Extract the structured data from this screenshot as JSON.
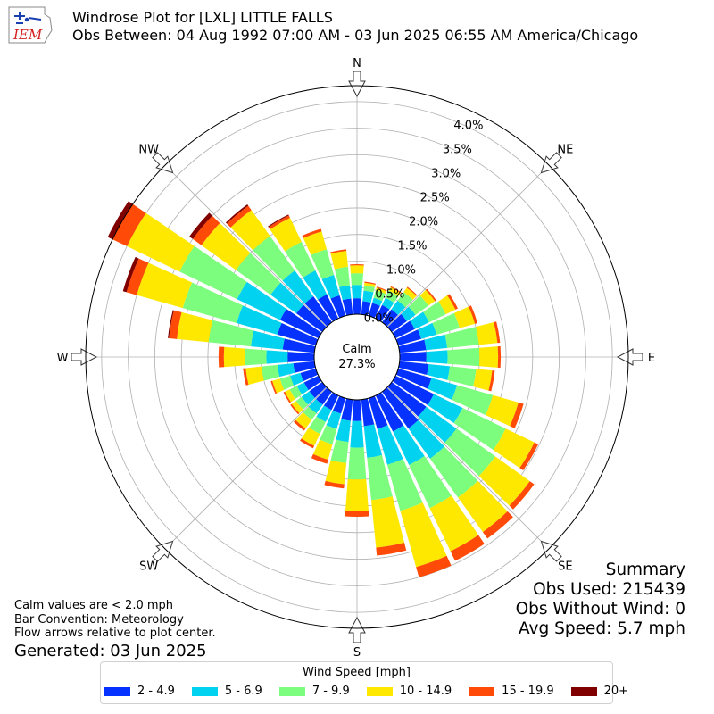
{
  "header": {
    "title": "Windrose Plot for [LXL] LITTLE FALLS",
    "subtitle": "Obs Between: 04 Aug 1992 07:00 AM - 03 Jun 2025 06:55 AM America/Chicago",
    "logo_text": "IEM"
  },
  "summary": {
    "heading": "Summary",
    "obs_used": "Obs Used: 215439",
    "obs_without_wind": "Obs Without Wind: 0",
    "avg_speed": "Avg Speed: 5.7 mph"
  },
  "notes": {
    "line1": "Calm values are < 2.0 mph",
    "line2": "Bar Convention: Meteorology",
    "line3": "Flow arrows relative to plot center.",
    "generated": "Generated: 03 Jun 2025"
  },
  "legend": {
    "title": "Wind Speed [mph]",
    "items": [
      {
        "label": "2 - 4.9",
        "color": "#0532ff"
      },
      {
        "label": "5 - 6.9",
        "color": "#00d2f0"
      },
      {
        "label": "7 - 9.9",
        "color": "#7dfd7d"
      },
      {
        "label": "10 - 14.9",
        "color": "#ffe800"
      },
      {
        "label": "15 - 19.9",
        "color": "#ff4a08"
      },
      {
        "label": "20+",
        "color": "#800000"
      }
    ]
  },
  "chart_data": {
    "type": "windrose",
    "calm": {
      "label": "Calm",
      "value": "27.3%"
    },
    "radial_ticks": [
      "0.0%",
      "0.5%",
      "1.0%",
      "1.5%",
      "2.0%",
      "2.5%",
      "3.0%",
      "3.5%",
      "4.0%"
    ],
    "radial_max_percent": 4.3,
    "cardinal_labels": [
      "N",
      "NE",
      "E",
      "SE",
      "S",
      "SW",
      "W",
      "NW"
    ],
    "series_names": [
      "2 - 4.9",
      "5 - 6.9",
      "7 - 9.9",
      "10 - 14.9",
      "15 - 19.9",
      "20+"
    ],
    "directions_deg": [
      0,
      10,
      20,
      30,
      40,
      50,
      60,
      70,
      80,
      90,
      100,
      110,
      120,
      130,
      140,
      150,
      160,
      170,
      180,
      190,
      200,
      210,
      220,
      230,
      240,
      250,
      260,
      270,
      280,
      290,
      300,
      310,
      320,
      330,
      340,
      350
    ],
    "bins_percent": [
      [
        0.3,
        0.25,
        0.22,
        0.15,
        0.02,
        0.0
      ],
      [
        0.25,
        0.2,
        0.1,
        0.05,
        0.02,
        0.0
      ],
      [
        0.25,
        0.1,
        0.15,
        0.05,
        0.02,
        0.0
      ],
      [
        0.28,
        0.15,
        0.15,
        0.07,
        0.02,
        0.0
      ],
      [
        0.3,
        0.2,
        0.2,
        0.1,
        0.02,
        0.0
      ],
      [
        0.35,
        0.2,
        0.3,
        0.15,
        0.03,
        0.0
      ],
      [
        0.4,
        0.3,
        0.35,
        0.2,
        0.05,
        0.0
      ],
      [
        0.45,
        0.3,
        0.45,
        0.3,
        0.05,
        0.0
      ],
      [
        0.5,
        0.4,
        0.6,
        0.35,
        0.05,
        0.0
      ],
      [
        0.5,
        0.4,
        0.6,
        0.35,
        0.05,
        0.0
      ],
      [
        0.55,
        0.4,
        0.5,
        0.3,
        0.05,
        0.0
      ],
      [
        0.65,
        0.5,
        0.7,
        0.5,
        0.1,
        0.0
      ],
      [
        0.8,
        0.6,
        0.9,
        0.6,
        0.08,
        0.0
      ],
      [
        0.8,
        0.7,
        0.9,
        0.8,
        0.1,
        0.0
      ],
      [
        0.85,
        0.7,
        0.9,
        0.8,
        0.15,
        0.0
      ],
      [
        0.75,
        0.7,
        0.9,
        0.9,
        0.2,
        0.0
      ],
      [
        0.6,
        0.7,
        0.9,
        1.1,
        0.2,
        0.0
      ],
      [
        0.5,
        0.6,
        0.8,
        0.9,
        0.15,
        0.0
      ],
      [
        0.4,
        0.5,
        0.6,
        0.6,
        0.1,
        0.0
      ],
      [
        0.4,
        0.4,
        0.4,
        0.4,
        0.08,
        0.0
      ],
      [
        0.3,
        0.3,
        0.3,
        0.3,
        0.08,
        0.0
      ],
      [
        0.3,
        0.25,
        0.25,
        0.25,
        0.05,
        0.0
      ],
      [
        0.3,
        0.2,
        0.15,
        0.2,
        0.05,
        0.0
      ],
      [
        0.3,
        0.18,
        0.13,
        0.1,
        0.03,
        0.0
      ],
      [
        0.3,
        0.15,
        0.15,
        0.1,
        0.03,
        0.0
      ],
      [
        0.3,
        0.2,
        0.2,
        0.15,
        0.03,
        0.0
      ],
      [
        0.4,
        0.3,
        0.3,
        0.3,
        0.05,
        0.0
      ],
      [
        0.5,
        0.4,
        0.4,
        0.4,
        0.1,
        0.0
      ],
      [
        0.6,
        0.6,
        0.8,
        0.6,
        0.15,
        0.02
      ],
      [
        0.75,
        0.8,
        1.05,
        0.9,
        0.2,
        0.07
      ],
      [
        0.8,
        0.9,
        1.2,
        1.1,
        0.3,
        0.1
      ],
      [
        0.6,
        0.6,
        0.8,
        0.8,
        0.2,
        0.08
      ],
      [
        0.6,
        0.6,
        0.8,
        0.6,
        0.1,
        0.03
      ],
      [
        0.5,
        0.5,
        0.6,
        0.5,
        0.05,
        0.02
      ],
      [
        0.4,
        0.4,
        0.5,
        0.35,
        0.05,
        0.0
      ],
      [
        0.3,
        0.25,
        0.35,
        0.3,
        0.03,
        0.0
      ]
    ]
  }
}
